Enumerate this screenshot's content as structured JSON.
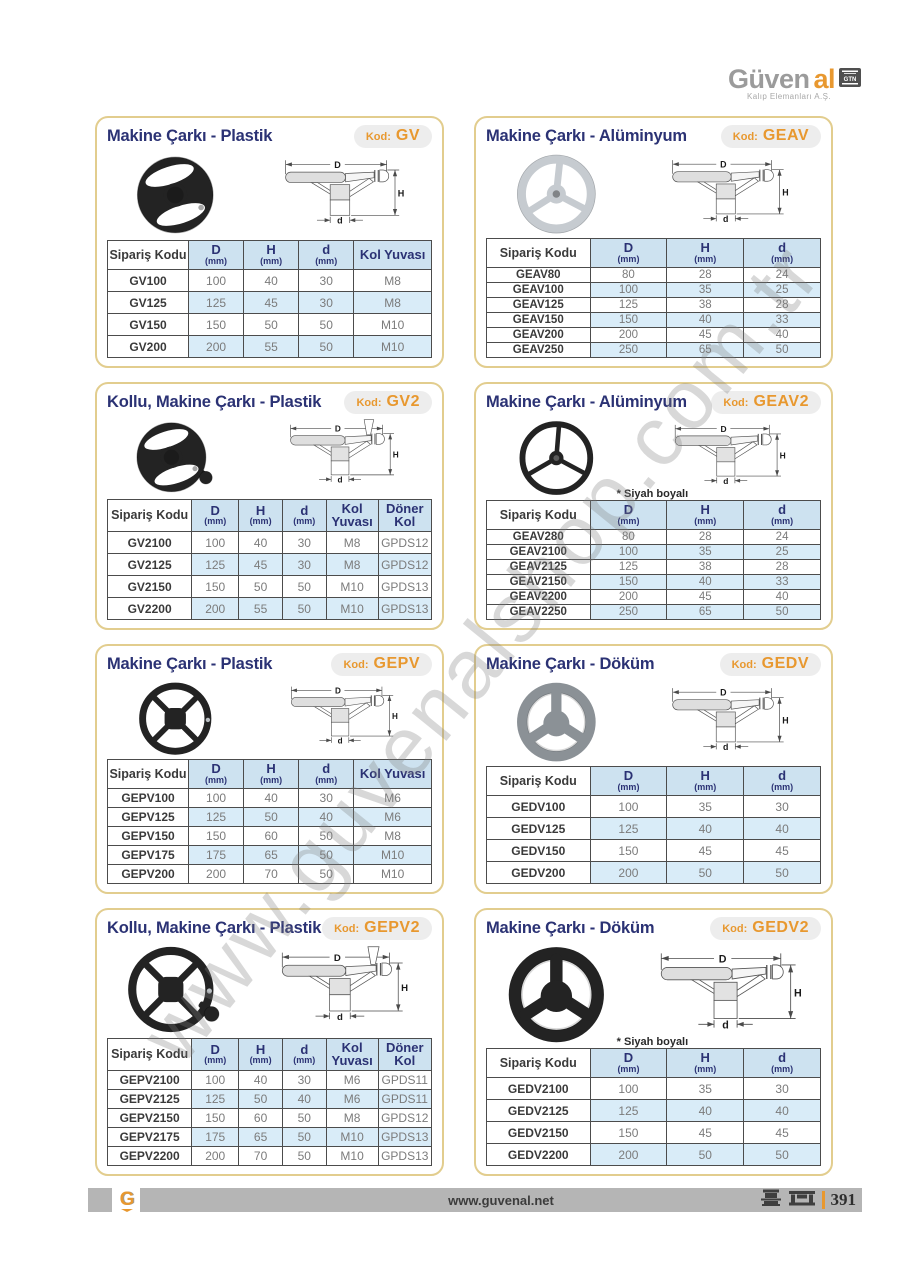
{
  "header": {
    "brand_gray": "Güven",
    "brand_orange": "al",
    "brand_badge": "GTN",
    "brand_subtitle": "Kalıp Elemanları A.Ş."
  },
  "watermark": "www.guvenalshop.com.tr",
  "labels": {
    "kod": "Kod:"
  },
  "diagram_labels": {
    "D": "D",
    "H": "H",
    "d": "d"
  },
  "footer": {
    "logo_letter": "G",
    "url": "www.guvenal.net",
    "page_number": "391"
  },
  "colors": {
    "accent_orange": "#e8982f",
    "title_navy": "#2b3274",
    "table_header_blue": "#cde2f0",
    "row_stripe_blue": "#d9ecf8",
    "panel_border_tan": "#e2cd8e",
    "footer_bar_gray": "#b5b5b5"
  },
  "panels": [
    {
      "title": "Makine Çarkı - Plastik",
      "code": "GV",
      "note": "",
      "wheel": "wheel-2spoke",
      "wheel_class": "wheel-black",
      "diagram": "diagram-plain",
      "headers": [
        {
          "label": "Sipariş Kodu",
          "unit": ""
        },
        {
          "label": "D",
          "unit": "(mm)"
        },
        {
          "label": "H",
          "unit": "(mm)"
        },
        {
          "label": "d",
          "unit": "(mm)"
        },
        {
          "label": "Kol Yuvası",
          "unit": ""
        }
      ],
      "rows": [
        [
          "GV100",
          "100",
          "40",
          "30",
          "M8"
        ],
        [
          "GV125",
          "125",
          "45",
          "30",
          "M8"
        ],
        [
          "GV150",
          "150",
          "50",
          "50",
          "M10"
        ],
        [
          "GV200",
          "200",
          "55",
          "50",
          "M10"
        ]
      ]
    },
    {
      "title": "Makine Çarkı - Alüminyum",
      "code": "GEAV",
      "note": "",
      "wheel": "wheel-3spoke",
      "wheel_class": "wheel-silver",
      "diagram": "diagram-plain",
      "headers": [
        {
          "label": "Sipariş Kodu",
          "unit": ""
        },
        {
          "label": "D",
          "unit": "(mm)"
        },
        {
          "label": "H",
          "unit": "(mm)"
        },
        {
          "label": "d",
          "unit": "(mm)"
        }
      ],
      "rows": [
        [
          "GEAV80",
          "80",
          "28",
          "24"
        ],
        [
          "GEAV100",
          "100",
          "35",
          "25"
        ],
        [
          "GEAV125",
          "125",
          "38",
          "28"
        ],
        [
          "GEAV150",
          "150",
          "40",
          "33"
        ],
        [
          "GEAV200",
          "200",
          "45",
          "40"
        ],
        [
          "GEAV250",
          "250",
          "65",
          "50"
        ]
      ]
    },
    {
      "title": "Kollu, Makine Çarkı - Plastik",
      "code": "GV2",
      "note": "",
      "wheel": "wheel-2spoke-handle",
      "wheel_class": "wheel-black",
      "diagram": "diagram-handle",
      "headers": [
        {
          "label": "Sipariş Kodu",
          "unit": ""
        },
        {
          "label": "D",
          "unit": "(mm)"
        },
        {
          "label": "H",
          "unit": "(mm)"
        },
        {
          "label": "d",
          "unit": "(mm)"
        },
        {
          "label": "Kol Yuvası",
          "unit": ""
        },
        {
          "label": "Döner Kol",
          "unit": ""
        }
      ],
      "rows": [
        [
          "GV2100",
          "100",
          "40",
          "30",
          "M8",
          "GPDS12"
        ],
        [
          "GV2125",
          "125",
          "45",
          "30",
          "M8",
          "GPDS12"
        ],
        [
          "GV2150",
          "150",
          "50",
          "50",
          "M10",
          "GPDS13"
        ],
        [
          "GV2200",
          "200",
          "55",
          "50",
          "M10",
          "GPDS13"
        ]
      ]
    },
    {
      "title": "Makine Çarkı - Alüminyum",
      "code": "GEAV2",
      "note": "* Siyah boyalı",
      "wheel": "wheel-3spoke-thin",
      "wheel_class": "wheel-black",
      "diagram": "diagram-plain",
      "headers": [
        {
          "label": "Sipariş Kodu",
          "unit": ""
        },
        {
          "label": "D",
          "unit": "(mm)"
        },
        {
          "label": "H",
          "unit": "(mm)"
        },
        {
          "label": "d",
          "unit": "(mm)"
        }
      ],
      "rows": [
        [
          "GEAV280",
          "80",
          "28",
          "24"
        ],
        [
          "GEAV2100",
          "100",
          "35",
          "25"
        ],
        [
          "GEAV2125",
          "125",
          "38",
          "28"
        ],
        [
          "GEAV2150",
          "150",
          "40",
          "33"
        ],
        [
          "GEAV2200",
          "200",
          "45",
          "40"
        ],
        [
          "GEAV2250",
          "250",
          "65",
          "50"
        ]
      ]
    },
    {
      "title": "Makine Çarkı - Plastik",
      "code": "GEPV",
      "note": "",
      "wheel": "wheel-4spoke",
      "wheel_class": "wheel-black",
      "diagram": "diagram-plain",
      "headers": [
        {
          "label": "Sipariş Kodu",
          "unit": ""
        },
        {
          "label": "D",
          "unit": "(mm)"
        },
        {
          "label": "H",
          "unit": "(mm)"
        },
        {
          "label": "d",
          "unit": "(mm)"
        },
        {
          "label": "Kol Yuvası",
          "unit": ""
        }
      ],
      "rows": [
        [
          "GEPV100",
          "100",
          "40",
          "30",
          "M6"
        ],
        [
          "GEPV125",
          "125",
          "50",
          "40",
          "M6"
        ],
        [
          "GEPV150",
          "150",
          "60",
          "50",
          "M8"
        ],
        [
          "GEPV175",
          "175",
          "65",
          "50",
          "M10"
        ],
        [
          "GEPV200",
          "200",
          "70",
          "50",
          "M10"
        ]
      ]
    },
    {
      "title": "Makine Çarkı - Döküm",
      "code": "GEDV",
      "note": "",
      "wheel": "wheel-3spoke-cast",
      "wheel_class": "wheel-gray",
      "diagram": "diagram-plain",
      "headers": [
        {
          "label": "Sipariş Kodu",
          "unit": ""
        },
        {
          "label": "D",
          "unit": "(mm)"
        },
        {
          "label": "H",
          "unit": "(mm)"
        },
        {
          "label": "d",
          "unit": "(mm)"
        }
      ],
      "rows": [
        [
          "GEDV100",
          "100",
          "35",
          "30"
        ],
        [
          "GEDV125",
          "125",
          "40",
          "40"
        ],
        [
          "GEDV150",
          "150",
          "45",
          "45"
        ],
        [
          "GEDV200",
          "200",
          "50",
          "50"
        ]
      ]
    },
    {
      "title": "Kollu, Makine Çarkı - Plastik",
      "code": "GEPV2",
      "note": "",
      "wheel": "wheel-4spoke-handle",
      "wheel_class": "wheel-black",
      "diagram": "diagram-handle",
      "headers": [
        {
          "label": "Sipariş Kodu",
          "unit": ""
        },
        {
          "label": "D",
          "unit": "(mm)"
        },
        {
          "label": "H",
          "unit": "(mm)"
        },
        {
          "label": "d",
          "unit": "(mm)"
        },
        {
          "label": "Kol Yuvası",
          "unit": ""
        },
        {
          "label": "Döner Kol",
          "unit": ""
        }
      ],
      "rows": [
        [
          "GEPV2100",
          "100",
          "40",
          "30",
          "M6",
          "GPDS11"
        ],
        [
          "GEPV2125",
          "125",
          "50",
          "40",
          "M6",
          "GPDS11"
        ],
        [
          "GEPV2150",
          "150",
          "60",
          "50",
          "M8",
          "GPDS12"
        ],
        [
          "GEPV2175",
          "175",
          "65",
          "50",
          "M10",
          "GPDS13"
        ],
        [
          "GEPV2200",
          "200",
          "70",
          "50",
          "M10",
          "GPDS13"
        ]
      ]
    },
    {
      "title": "Makine Çarkı - Döküm",
      "code": "GEDV2",
      "note": "* Siyah boyalı",
      "wheel": "wheel-3spoke-cast",
      "wheel_class": "wheel-black",
      "diagram": "diagram-plain",
      "headers": [
        {
          "label": "Sipariş Kodu",
          "unit": ""
        },
        {
          "label": "D",
          "unit": "(mm)"
        },
        {
          "label": "H",
          "unit": "(mm)"
        },
        {
          "label": "d",
          "unit": "(mm)"
        }
      ],
      "rows": [
        [
          "GEDV2100",
          "100",
          "35",
          "30"
        ],
        [
          "GEDV2125",
          "125",
          "40",
          "40"
        ],
        [
          "GEDV2150",
          "150",
          "45",
          "45"
        ],
        [
          "GEDV2200",
          "200",
          "50",
          "50"
        ]
      ]
    }
  ]
}
